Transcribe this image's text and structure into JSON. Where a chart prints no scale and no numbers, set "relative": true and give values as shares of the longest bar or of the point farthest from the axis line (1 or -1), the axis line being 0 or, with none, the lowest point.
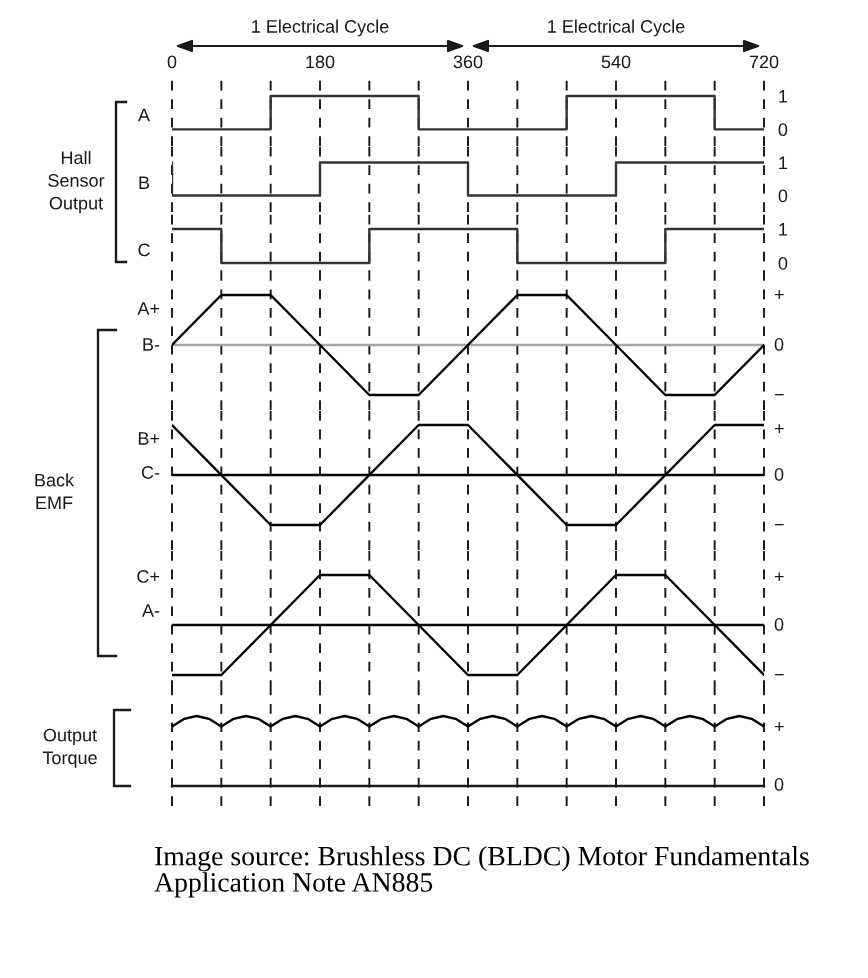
{
  "chart_data": [
    {
      "type": "step",
      "ylabel": "A",
      "annotations": [
        "1 Electrical Cycle",
        "1 Electrical Cycle"
      ],
      "x": [
        0,
        120,
        300,
        480,
        660,
        720
      ],
      "series": [
        {
          "color": "#333333",
          "values": [
            0,
            1,
            0,
            1,
            0,
            0
          ]
        }
      ],
      "xlim": [
        0,
        720
      ],
      "xticks": [
        0,
        {
          "value": 60,
          "label": null
        },
        {
          "value": 120,
          "label": null
        },
        180,
        {
          "value": 240,
          "label": null
        },
        {
          "value": 300,
          "label": null
        },
        360,
        {
          "value": 420,
          "label": null
        },
        {
          "value": 480,
          "label": null
        },
        540,
        {
          "value": 600,
          "label": null
        },
        {
          "value": 660,
          "label": null
        },
        720
      ],
      "ylim": [
        -0.5,
        1.6
      ],
      "yticks": [
        0,
        1
      ],
      "grid": "x"
    },
    {
      "type": "step",
      "ylabel": "B",
      "annotations": [
        "Hall\nSensor\nOutput"
      ],
      "x": [
        0,
        0,
        180,
        360,
        540,
        720
      ],
      "series": [
        {
          "color": "#333333",
          "values": [
            1,
            0,
            1,
            0,
            1,
            1
          ]
        }
      ],
      "xlim": [
        0,
        720
      ],
      "xticks": [
        0,
        {
          "value": 60,
          "label": null
        },
        {
          "value": 120,
          "label": null
        },
        180,
        {
          "value": 240,
          "label": null
        },
        {
          "value": 300,
          "label": null
        },
        360,
        {
          "value": 420,
          "label": null
        },
        {
          "value": 480,
          "label": null
        },
        540,
        {
          "value": 600,
          "label": null
        },
        {
          "value": 660,
          "label": null
        },
        720
      ],
      "ylim": [
        -0.5,
        1.5
      ],
      "yticks": [
        0,
        1
      ],
      "grid": "x",
      "tick_labels": "y"
    },
    {
      "type": "step",
      "ylabel": "C",
      "x": [
        0,
        60,
        240,
        420,
        600,
        720
      ],
      "series": [
        {
          "color": "#333333",
          "values": [
            1,
            0,
            1,
            0,
            1,
            1
          ]
        }
      ],
      "xlim": [
        0,
        720
      ],
      "xticks": [
        0,
        {
          "value": 60,
          "label": null
        },
        {
          "value": 120,
          "label": null
        },
        180,
        {
          "value": 240,
          "label": null
        },
        {
          "value": 300,
          "label": null
        },
        360,
        {
          "value": 420,
          "label": null
        },
        {
          "value": 480,
          "label": null
        },
        540,
        {
          "value": 600,
          "label": null
        },
        {
          "value": 660,
          "label": null
        },
        720
      ],
      "ylim": [
        -0.5,
        1.5
      ],
      "yticks": [
        0,
        1
      ],
      "grid": "x",
      "tick_labels": "y"
    },
    {
      "type": "line",
      "relative": true,
      "annotations": [
        "A+",
        "B-",
        "+",
        "0",
        "−"
      ],
      "x": [
        0,
        60,
        120,
        240,
        300,
        420,
        480,
        600,
        660,
        720
      ],
      "series": [
        {
          "color": "#000000",
          "values": [
            0,
            1,
            1,
            -1,
            -1,
            1,
            1,
            -1,
            -1,
            0
          ]
        }
      ],
      "xlim": [
        0,
        720
      ],
      "xticks": [
        0,
        {
          "value": 60,
          "label": null
        },
        {
          "value": 120,
          "label": null
        },
        180,
        {
          "value": 240,
          "label": null
        },
        {
          "value": 300,
          "label": null
        },
        360,
        {
          "value": 420,
          "label": null
        },
        {
          "value": 480,
          "label": null
        },
        540,
        {
          "value": 600,
          "label": null
        },
        {
          "value": 660,
          "label": null
        },
        720
      ],
      "ref_lines": [
        {
          "axis": "y",
          "value": 0,
          "color": "#a6a6a6"
        }
      ],
      "grid": "x",
      "tick_labels": false
    },
    {
      "type": "line",
      "relative": true,
      "annotations": [
        "Back\nEMF",
        "B+",
        "C-",
        "+",
        "0",
        "−"
      ],
      "x": [
        0,
        120,
        180,
        300,
        360,
        480,
        540,
        660,
        720
      ],
      "series": [
        {
          "color": "#000000",
          "values": [
            1,
            -1,
            -1,
            1,
            1,
            -1,
            -1,
            1,
            1
          ]
        }
      ],
      "xlim": [
        0,
        720
      ],
      "xticks": [
        0,
        {
          "value": 60,
          "label": null
        },
        {
          "value": 120,
          "label": null
        },
        180,
        {
          "value": 240,
          "label": null
        },
        {
          "value": 300,
          "label": null
        },
        360,
        {
          "value": 420,
          "label": null
        },
        {
          "value": 480,
          "label": null
        },
        540,
        {
          "value": 600,
          "label": null
        },
        {
          "value": 660,
          "label": null
        },
        720
      ],
      "ref_lines": [
        {
          "axis": "y",
          "value": 0,
          "color": "#000000"
        }
      ],
      "grid": "x",
      "tick_labels": false
    },
    {
      "type": "line",
      "relative": true,
      "annotations": [
        "C+",
        "A-",
        "+",
        "0",
        "−"
      ],
      "x": [
        0,
        60,
        180,
        240,
        360,
        420,
        540,
        600,
        720
      ],
      "series": [
        {
          "color": "#000000",
          "values": [
            -1,
            -1,
            1,
            1,
            -1,
            -1,
            1,
            1,
            -1
          ]
        }
      ],
      "xlim": [
        0,
        720
      ],
      "xticks": [
        0,
        {
          "value": 60,
          "label": null
        },
        {
          "value": 120,
          "label": null
        },
        180,
        {
          "value": 240,
          "label": null
        },
        {
          "value": 300,
          "label": null
        },
        360,
        {
          "value": 420,
          "label": null
        },
        {
          "value": 480,
          "label": null
        },
        540,
        {
          "value": 600,
          "label": null
        },
        {
          "value": 660,
          "label": null
        },
        720
      ],
      "ref_lines": [
        {
          "axis": "y",
          "value": 0,
          "color": "#000000"
        }
      ],
      "grid": "x",
      "tick_labels": false
    },
    {
      "type": "line",
      "relative": true,
      "annotations": [
        "Output\nTorque",
        "Image source: Brushless DC (BLDC) Motor Fundamentals\nApplication Note AN885",
        "+",
        "0"
      ],
      "x": [
        0,
        15,
        30,
        45,
        60,
        75,
        90,
        105,
        120,
        135,
        150,
        165,
        180,
        195,
        210,
        225,
        240,
        255,
        270,
        285,
        300,
        315,
        330,
        345,
        360,
        375,
        390,
        405,
        420,
        435,
        450,
        465,
        480,
        495,
        510,
        525,
        540,
        555,
        570,
        585,
        600,
        615,
        630,
        645,
        660,
        675,
        690,
        705,
        720
      ],
      "series": [
        {
          "color": "#000000",
          "values": [
            0.85,
            0.96,
            1,
            0.96,
            0.85,
            0.96,
            1,
            0.96,
            0.85,
            0.96,
            1,
            0.96,
            0.85,
            0.96,
            1,
            0.96,
            0.85,
            0.96,
            1,
            0.96,
            0.85,
            0.96,
            1,
            0.96,
            0.85,
            0.96,
            1,
            0.96,
            0.85,
            0.96,
            1,
            0.96,
            0.85,
            0.96,
            1,
            0.96,
            0.85,
            0.96,
            1,
            0.96,
            0.85,
            0.96,
            1,
            0.96,
            0.85,
            0.96,
            1,
            0.96,
            0.85
          ]
        }
      ],
      "xlim": [
        0,
        720
      ],
      "xticks": [
        0,
        {
          "value": 60,
          "label": null
        },
        {
          "value": 120,
          "label": null
        },
        180,
        {
          "value": 240,
          "label": null
        },
        {
          "value": 300,
          "label": null
        },
        360,
        {
          "value": 420,
          "label": null
        },
        {
          "value": 480,
          "label": null
        },
        540,
        {
          "value": 600,
          "label": null
        },
        {
          "value": 660,
          "label": null
        },
        720
      ],
      "grid": "x",
      "tick_labels": false
    }
  ]
}
